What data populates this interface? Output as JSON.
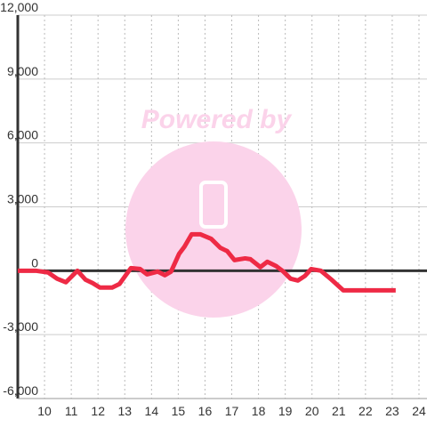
{
  "chart_data": {
    "type": "line",
    "watermark": "Powered by",
    "x": [
      9.0,
      9.67,
      10.13,
      10.47,
      10.8,
      11.23,
      11.53,
      11.8,
      12.07,
      12.53,
      12.8,
      13.23,
      13.57,
      13.83,
      14.23,
      14.5,
      14.73,
      15.03,
      15.23,
      15.5,
      15.83,
      16.23,
      16.57,
      16.83,
      17.1,
      17.5,
      17.7,
      18.07,
      18.33,
      18.67,
      18.93,
      19.2,
      19.47,
      19.73,
      19.97,
      20.33,
      20.73,
      21.17,
      23.13
    ],
    "series": [
      {
        "color": "#ee2a45",
        "values": [
          0,
          0,
          -80,
          -375,
          -540,
          0,
          -420,
          -580,
          -790,
          -790,
          -625,
          125,
          80,
          -170,
          -40,
          -210,
          -40,
          790,
          1125,
          1710,
          1710,
          1500,
          1080,
          920,
          500,
          580,
          540,
          170,
          420,
          210,
          -40,
          -375,
          -460,
          -250,
          80,
          0,
          -420,
          -920,
          -920
        ]
      }
    ],
    "xlim": [
      9,
      24.3
    ],
    "xticks": [
      10,
      11,
      12,
      13,
      14,
      15,
      16,
      17,
      18,
      19,
      20,
      21,
      22,
      23,
      24
    ],
    "ylim": [
      -6000,
      12000
    ],
    "yticks": [
      {
        "value": 12000,
        "label": "12,000"
      },
      {
        "value": 9000,
        "label": "9,000"
      },
      {
        "value": 6000,
        "label": "6,000"
      },
      {
        "value": 3000,
        "label": "3,000"
      },
      0,
      {
        "value": -3000,
        "label": "-3,000"
      },
      {
        "value": -6000,
        "label": "-6,000"
      }
    ],
    "grid": true
  }
}
